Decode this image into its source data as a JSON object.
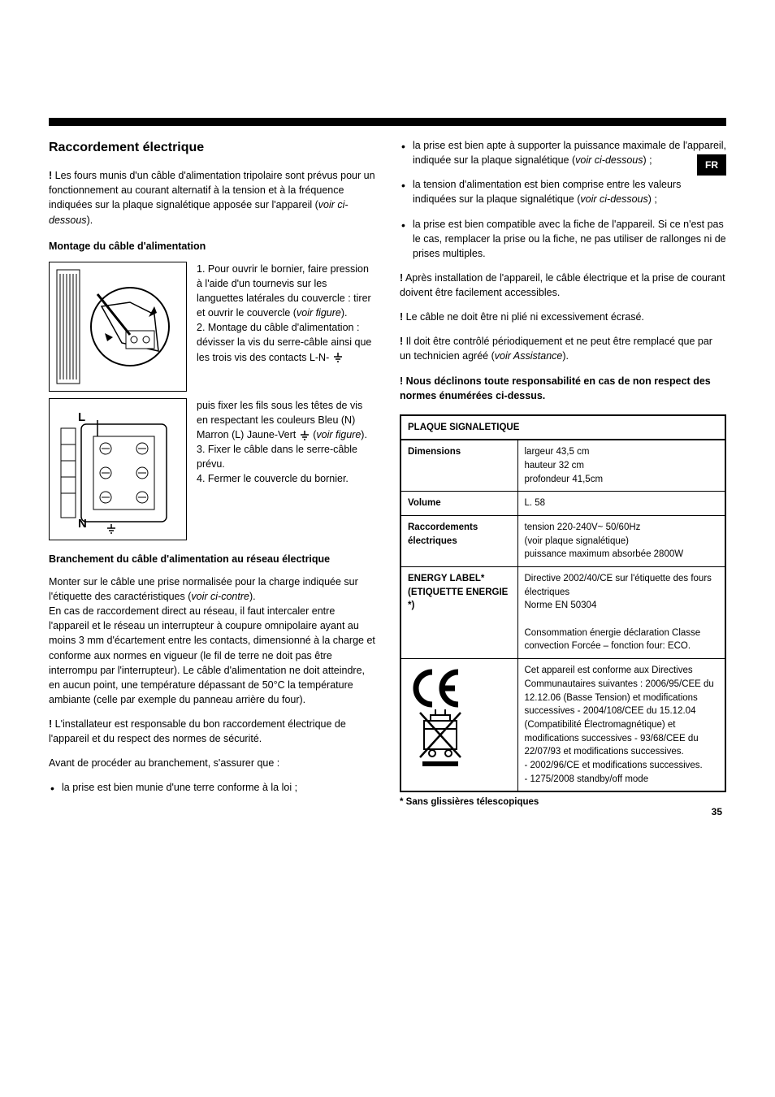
{
  "lang_badge": "FR",
  "page_number": "35",
  "headings": {
    "h2": "Raccordement électrique",
    "h3_montage": "Montage du câble d'alimentation",
    "h3_branchement": "Branchement du câble d'alimentation au réseau électrique"
  },
  "left": {
    "intro_excl": "!",
    "intro": " Les fours munis d'un câble d'alimentation tripolaire sont prévus pour un fonctionnement au courant alternatif à la tension et à la fréquence indiquées sur la plaque signalétique apposée sur l'appareil (",
    "intro_it": "voir ci-dessous",
    "intro_end": ").",
    "step1": "1. Pour ouvrir le bornier, faire pression à l'aide d'un tournevis sur les languettes latérales du couvercle : tirer et ouvrir le couvercle (",
    "step1_it": "voir figure",
    "step1_end": ").",
    "step2a": "2. Montage du câble d'alimentation : dévisser la vis du serre-câble ainsi que les trois vis des contacts L-N-",
    "step2b": " puis fixer les fils sous les têtes de vis en respectant les couleurs Bleu (N) Marron (L) Jaune-Vert ",
    "step2c": " (",
    "step2_it": "voir figure",
    "step2_end": ").",
    "step3": "3. Fixer le câble dans le serre-câble prévu.",
    "step4": "4. Fermer le couvercle du bornier.",
    "branch_p1a": "Monter sur le câble une prise normalisée pour la charge indiquée sur l'étiquette des caractéristiques (",
    "branch_p1_it": "voir ci-contre",
    "branch_p1b": ").",
    "branch_p2": "En cas de raccordement direct au réseau, il faut intercaler entre l'appareil et le réseau un interrupteur à coupure omnipolaire ayant au moins 3 mm d'écartement entre les contacts, dimensionné à la charge et conforme aux normes en vigueur (le fil de terre ne doit pas être interrompu par l'interrupteur). Le câble d'alimentation ne doit atteindre, en aucun point, une température dépassant de 50°C la température ambiante (celle par exemple du panneau arrière du four).",
    "installer_excl": "!",
    "installer": " L'installateur est responsable du bon raccordement électrique de l'appareil et du respect des normes de sécurité.",
    "avant": "Avant de procéder au branchement, s'assurer que :",
    "bullet_left": "la prise est bien munie d'une terre conforme à la loi ;",
    "fig_labels": {
      "L": "L",
      "N": "N"
    }
  },
  "right": {
    "b1a": "la prise est bien apte à supporter la puissance maximale de l'appareil, indiquée sur la plaque signalétique (",
    "b1_it": "voir ci-dessous",
    "b1b": ") ;",
    "b2a": "la tension d'alimentation est bien comprise entre les valeurs indiquées sur la plaque signalétique (",
    "b2_it": "voir ci-dessous",
    "b2b": ") ;",
    "b3": "la prise est bien compatible avec la fiche de l'appareil. Si ce n'est pas le cas, remplacer la prise ou la fiche, ne pas utiliser de rallonges ni de prises multiples.",
    "p_access_excl": "!",
    "p_access": " Après installation de l'appareil, le câble électrique et la prise de courant doivent être facilement accessibles.",
    "p_cable_excl": "!",
    "p_cable": " Le câble ne doit être ni plié ni excessivement écrasé.",
    "p_control_excl": "!",
    "p_control_a": " Il doit être contrôlé périodiquement et ne peut être remplacé que par un technicien agréé (",
    "p_control_it": "voir Assistance",
    "p_control_b": ").",
    "warn": "! Nous déclinons toute responsabilité en cas de non respect des normes énumérées ci-dessus.",
    "footnote": "* Sans glissières télescopiques"
  },
  "table": {
    "header": "PLAQUE SIGNALETIQUE",
    "rows": [
      {
        "label": "Dimensions",
        "value": "largeur 43,5 cm\nhauteur 32 cm\nprofondeur 41,5cm"
      },
      {
        "label": "Volume",
        "value": "L. 58"
      },
      {
        "label": "Raccordements électriques",
        "value": "tension 220-240V~ 50/60Hz\n(voir plaque signalétique)\npuissance maximum absorbée 2800W"
      },
      {
        "label": "ENERGY LABEL* (ETIQUETTE ENERGIE *)",
        "value": "Directive 2002/40/CE sur l'étiquette des fours électriques\nNorme EN 50304\n\nConsommation énergie déclaration Classe convection Forcée – fonction four: ECO."
      },
      {
        "label": "__CE__",
        "value": "Cet appareil est conforme aux Directives Communautaires suivantes : 2006/95/CEE du 12.12.06 (Basse Tension) et modifications successives - 2004/108/CEE du 15.12.04 (Compatibilité Électromagnétique) et modifications successives - 93/68/CEE du 22/07/93 et modifications successives.\n- 2002/96/CE et modifications successives.\n- 1275/2008 standby/off mode"
      }
    ]
  }
}
